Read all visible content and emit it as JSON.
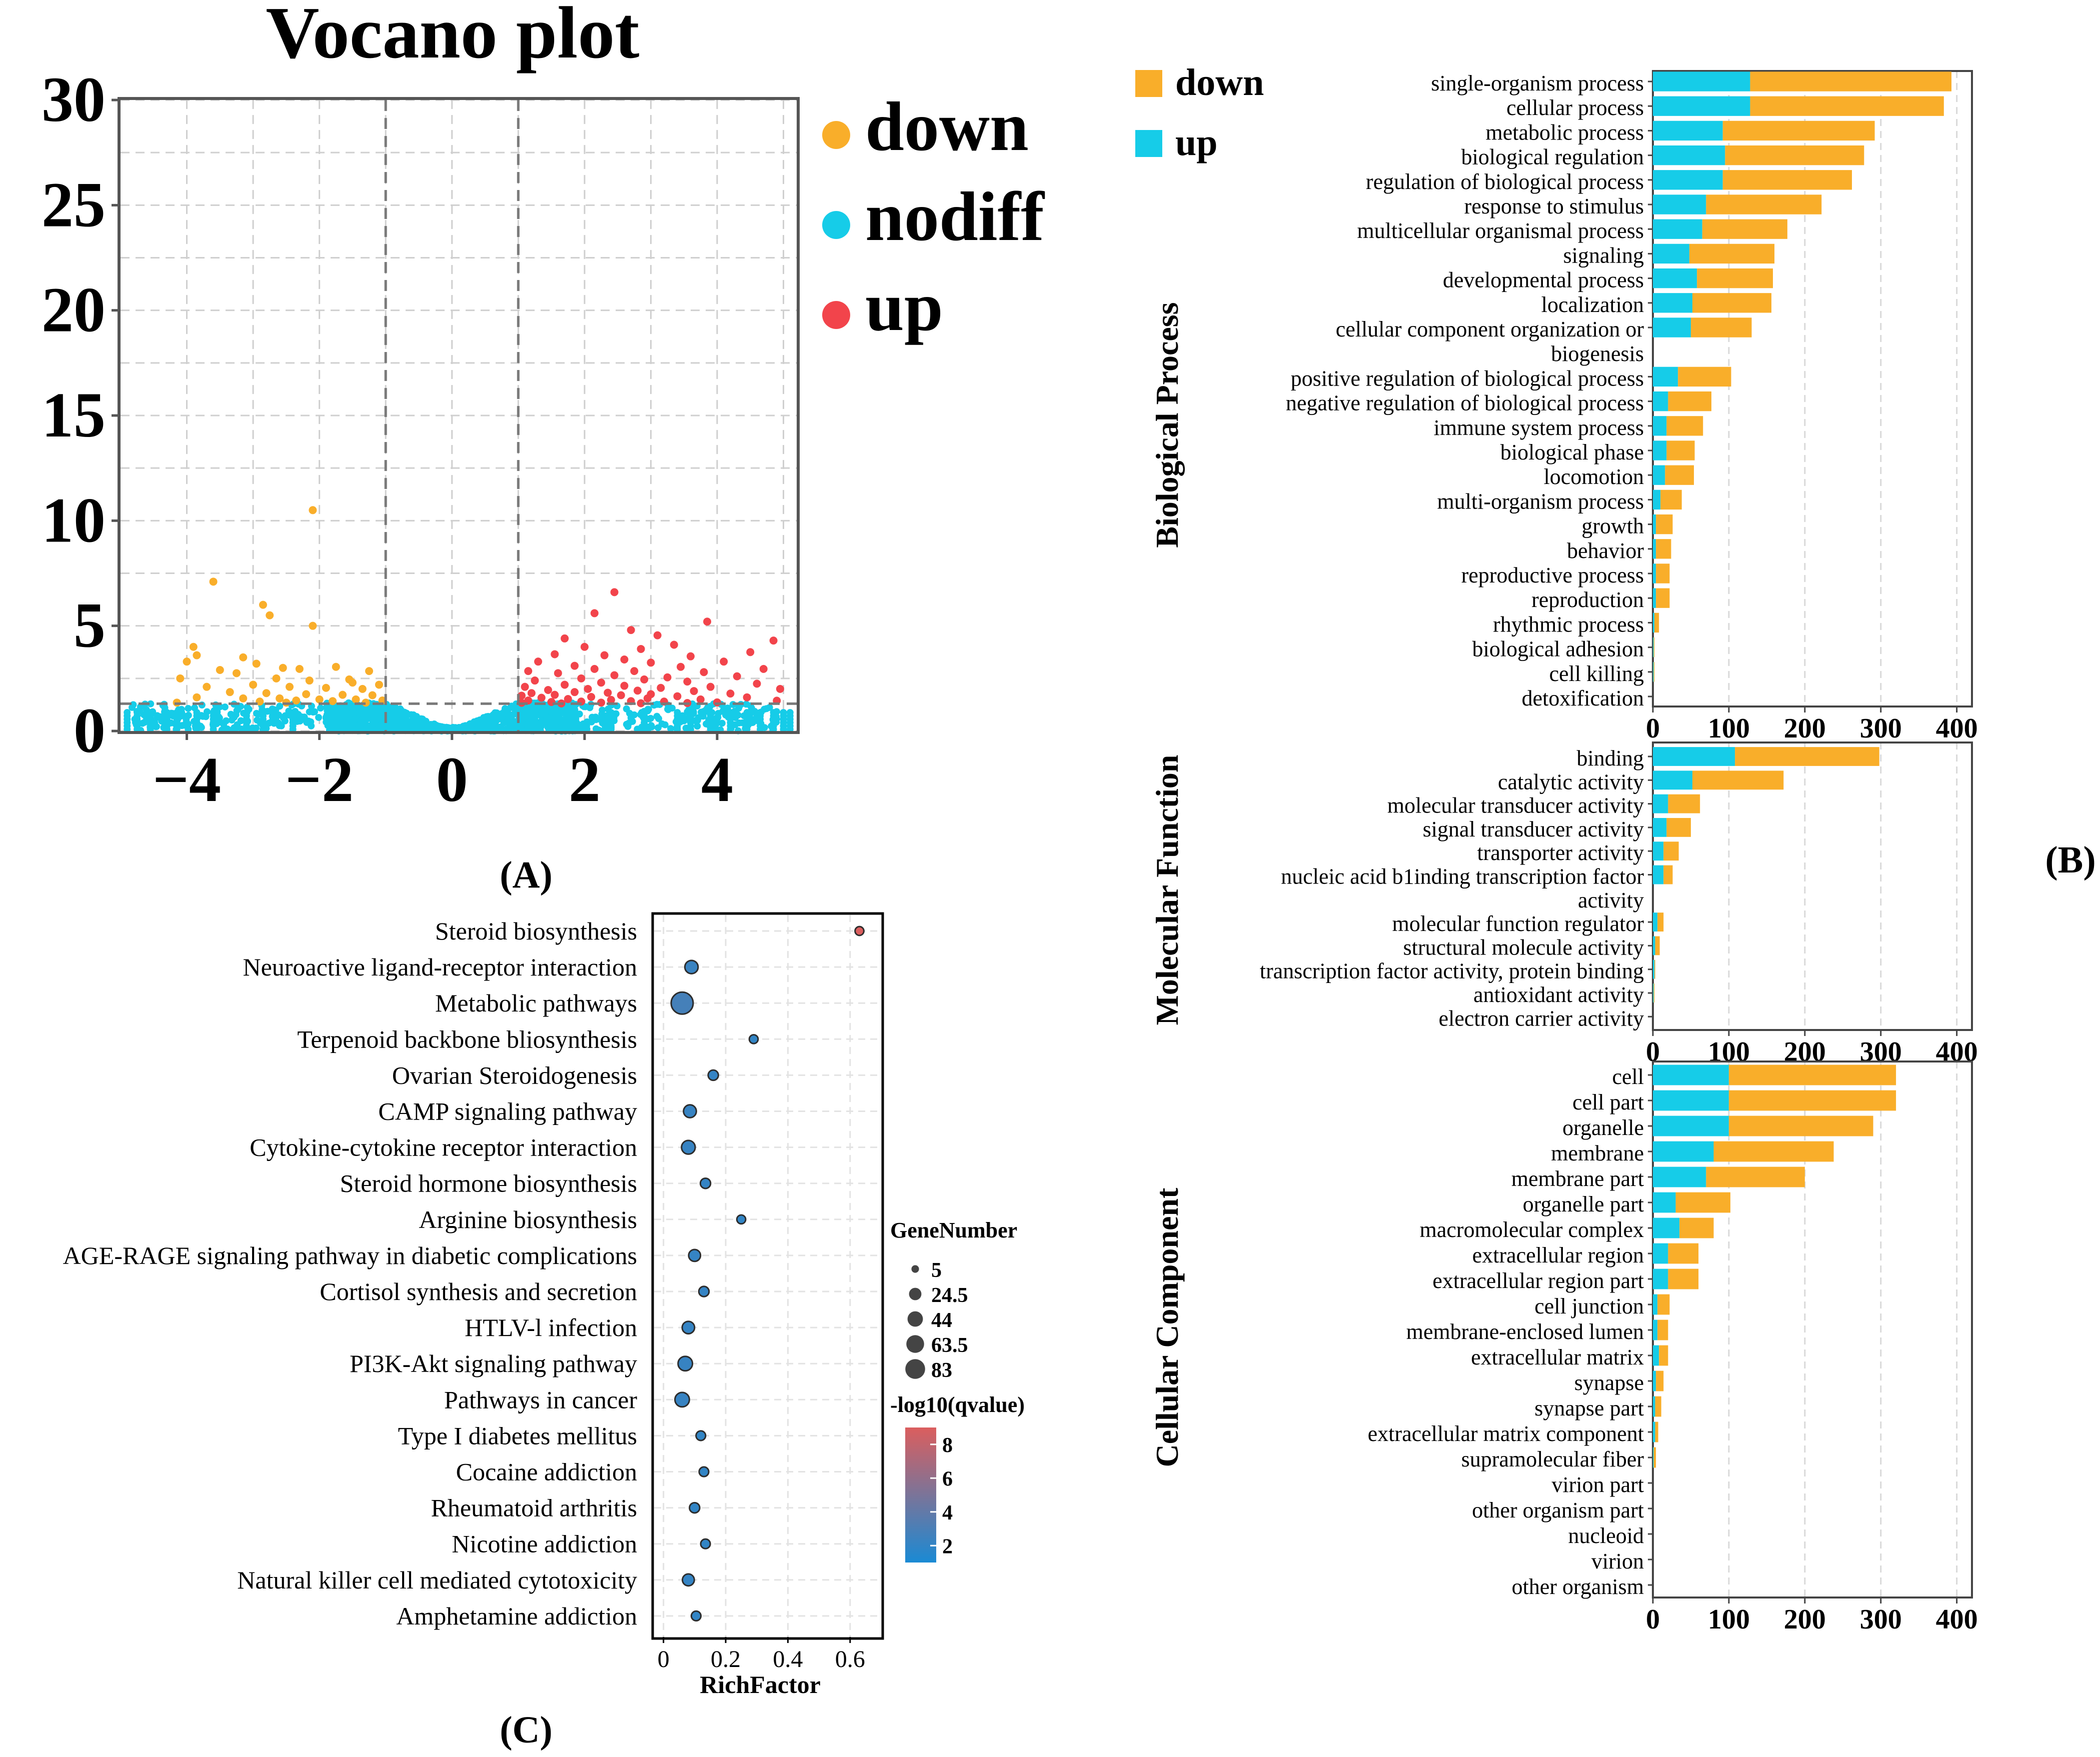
{
  "colors": {
    "down": "#F9AE2A",
    "nodiff": "#16CCE8",
    "up": "#F2444B",
    "bar_up": "#16CCE8",
    "bar_down": "#F9AE2A",
    "q_high": "#DB5E5E",
    "q_low": "#1A8AD4",
    "bubble_stroke": "#2C2C2C",
    "grid": "#CFCFCF"
  },
  "panel_labels": {
    "a": "(A)",
    "b": "(B)",
    "c": "(C)"
  },
  "chart_data": [
    {
      "panel": "A",
      "type": "scatter",
      "title": "Vocano plot",
      "xlabel": "",
      "ylabel": "",
      "xlim": [
        -5,
        5.2
      ],
      "ylim": [
        0,
        30
      ],
      "xticks": [
        -4,
        -2,
        0,
        2,
        4
      ],
      "xtick_labels": [
        "−4",
        "−2",
        "0",
        "2",
        "4"
      ],
      "yticks": [
        0,
        5,
        10,
        15,
        20,
        25,
        30
      ],
      "ytick_labels": [
        "0",
        "5",
        "10",
        "15",
        "20",
        "25",
        "30"
      ],
      "thresholds": {
        "log2fc": [
          -1,
          1
        ],
        "neg_log10_p": 1.3
      },
      "grid": true,
      "legend": {
        "position": "right",
        "entries": [
          "down",
          "nodiff",
          "up"
        ]
      },
      "series": [
        {
          "name": "down",
          "points": [
            [
              -2.1,
              10.5
            ],
            [
              -3.6,
              7.1
            ],
            [
              -2.85,
              6.0
            ],
            [
              -2.75,
              5.5
            ],
            [
              -2.1,
              5.0
            ],
            [
              -3.9,
              4.0
            ],
            [
              -3.85,
              3.6
            ],
            [
              -4.0,
              3.3
            ],
            [
              -3.15,
              3.5
            ],
            [
              -2.95,
              3.2
            ],
            [
              -3.5,
              2.9
            ],
            [
              -4.1,
              2.5
            ],
            [
              -2.55,
              3.0
            ],
            [
              -2.3,
              2.95
            ],
            [
              -1.75,
              3.05
            ],
            [
              -1.25,
              2.85
            ],
            [
              -3.25,
              2.75
            ],
            [
              -2.65,
              2.5
            ],
            [
              -1.55,
              2.45
            ],
            [
              -2.15,
              2.4
            ],
            [
              -1.5,
              2.3
            ],
            [
              -1.1,
              2.2
            ],
            [
              -3.7,
              2.1
            ],
            [
              -3.0,
              2.2
            ],
            [
              -2.45,
              2.1
            ],
            [
              -1.9,
              2.05
            ],
            [
              -1.35,
              2.0
            ],
            [
              -3.35,
              1.85
            ],
            [
              -2.8,
              1.8
            ],
            [
              -2.2,
              1.75
            ],
            [
              -1.65,
              1.72
            ],
            [
              -1.2,
              1.7
            ],
            [
              -3.85,
              1.6
            ],
            [
              -3.15,
              1.55
            ],
            [
              -2.6,
              1.55
            ],
            [
              -2.0,
              1.5
            ],
            [
              -1.45,
              1.5
            ],
            [
              -1.05,
              1.45
            ],
            [
              -2.35,
              1.45
            ],
            [
              -1.8,
              1.42
            ],
            [
              -2.9,
              1.4
            ],
            [
              -4.15,
              1.35
            ],
            [
              -1.3,
              1.35
            ],
            [
              -2.5,
              1.35
            ]
          ]
        },
        {
          "name": "up",
          "points": [
            [
              2.45,
              6.6
            ],
            [
              2.15,
              5.6
            ],
            [
              3.85,
              5.2
            ],
            [
              2.7,
              4.8
            ],
            [
              4.85,
              4.3
            ],
            [
              1.7,
              4.4
            ],
            [
              3.1,
              4.55
            ],
            [
              3.35,
              4.1
            ],
            [
              2.0,
              4.0
            ],
            [
              2.85,
              3.9
            ],
            [
              4.5,
              3.75
            ],
            [
              1.55,
              3.65
            ],
            [
              2.3,
              3.6
            ],
            [
              3.6,
              3.55
            ],
            [
              2.6,
              3.4
            ],
            [
              4.1,
              3.3
            ],
            [
              1.3,
              3.3
            ],
            [
              3.0,
              3.25
            ],
            [
              1.85,
              3.1
            ],
            [
              3.45,
              3.05
            ],
            [
              4.7,
              2.95
            ],
            [
              2.15,
              2.95
            ],
            [
              2.75,
              2.85
            ],
            [
              1.15,
              2.85
            ],
            [
              3.8,
              2.8
            ],
            [
              1.6,
              2.75
            ],
            [
              2.45,
              2.65
            ],
            [
              4.3,
              2.6
            ],
            [
              3.25,
              2.55
            ],
            [
              1.95,
              2.5
            ],
            [
              2.9,
              2.45
            ],
            [
              1.25,
              2.4
            ],
            [
              3.55,
              2.35
            ],
            [
              2.25,
              2.3
            ],
            [
              4.6,
              2.25
            ],
            [
              1.7,
              2.2
            ],
            [
              2.6,
              2.15
            ],
            [
              3.9,
              2.1
            ],
            [
              1.1,
              2.1
            ],
            [
              3.15,
              2.05
            ],
            [
              2.05,
              2.0
            ],
            [
              4.95,
              2.0
            ],
            [
              1.45,
              1.95
            ],
            [
              2.8,
              1.92
            ],
            [
              3.65,
              1.9
            ],
            [
              1.85,
              1.85
            ],
            [
              2.35,
              1.82
            ],
            [
              1.2,
              1.8
            ],
            [
              4.2,
              1.78
            ],
            [
              3.0,
              1.75
            ],
            [
              1.55,
              1.72
            ],
            [
              2.55,
              1.7
            ],
            [
              1.05,
              1.68
            ],
            [
              3.4,
              1.65
            ],
            [
              2.1,
              1.62
            ],
            [
              4.45,
              1.6
            ],
            [
              1.35,
              1.58
            ],
            [
              2.95,
              1.55
            ],
            [
              1.75,
              1.52
            ],
            [
              3.75,
              1.5
            ],
            [
              2.4,
              1.48
            ],
            [
              1.15,
              1.45
            ],
            [
              4.9,
              1.44
            ],
            [
              2.7,
              1.42
            ],
            [
              1.95,
              1.4
            ],
            [
              3.2,
              1.4
            ],
            [
              1.5,
              1.38
            ],
            [
              4.0,
              1.36
            ],
            [
              2.25,
              1.35
            ],
            [
              1.05,
              1.34
            ],
            [
              3.55,
              1.33
            ],
            [
              2.85,
              1.32
            ],
            [
              1.65,
              1.31
            ]
          ]
        }
      ]
    },
    {
      "panel": "B",
      "type": "bar",
      "orientation": "horizontal",
      "stacked": true,
      "xlim": [
        0,
        420
      ],
      "xticks": [
        0,
        100,
        200,
        300,
        400
      ],
      "legend": {
        "position": "top-left",
        "entries": [
          "down",
          "up"
        ]
      },
      "groups": [
        {
          "name": "Biological Process",
          "categories": [
            [
              "single-organism process"
            ],
            [
              "cellular process"
            ],
            [
              "metabolic process"
            ],
            [
              "biological regulation"
            ],
            [
              "regulation of biological process"
            ],
            [
              "response to stimulus"
            ],
            [
              "multicellular organismal process"
            ],
            [
              "signaling"
            ],
            [
              "developmental process"
            ],
            [
              "localization"
            ],
            [
              "cellular component organization or",
              "biogenesis"
            ],
            [
              "positive regulation of biological process"
            ],
            [
              "negative regulation of biological process"
            ],
            [
              "immune system process"
            ],
            [
              "biological phase"
            ],
            [
              "locomotion"
            ],
            [
              "multi-organism process"
            ],
            [
              "growth"
            ],
            [
              "behavior"
            ],
            [
              "reproductive process"
            ],
            [
              "reproduction"
            ],
            [
              "rhythmic process"
            ],
            [
              "biological adhesion"
            ],
            [
              "cell killing"
            ],
            [
              "detoxification"
            ]
          ],
          "series": [
            {
              "name": "up",
              "values": [
                128,
                128,
                92,
                95,
                92,
                70,
                65,
                48,
                58,
                52,
                50,
                33,
                20,
                18,
                18,
                16,
                10,
                4,
                4,
                4,
                4,
                2,
                1,
                1,
                0
              ]
            },
            {
              "name": "down",
              "values": [
                265,
                255,
                200,
                183,
                170,
                152,
                112,
                112,
                100,
                104,
                80,
                70,
                57,
                48,
                37,
                38,
                28,
                22,
                20,
                18,
                18,
                6,
                1,
                1,
                0
              ]
            }
          ]
        },
        {
          "name": "Molecular Function",
          "categories": [
            [
              "binding"
            ],
            [
              "catalytic activity"
            ],
            [
              "molecular transducer activity"
            ],
            [
              "signal transducer activity"
            ],
            [
              "transporter activity"
            ],
            [
              "nucleic acid b1inding transcription factor",
              "activity"
            ],
            [
              "molecular function regulator"
            ],
            [
              "structural molecule activity"
            ],
            [
              "transcription factor activity, protein binding"
            ],
            [
              "antioxidant activity"
            ],
            [
              "electron carrier activity"
            ]
          ],
          "series": [
            {
              "name": "up",
              "values": [
                108,
                52,
                20,
                18,
                14,
                14,
                6,
                3,
                2,
                1,
                0
              ]
            },
            {
              "name": "down",
              "values": [
                190,
                120,
                42,
                32,
                20,
                12,
                8,
                6,
                1,
                1,
                0
              ]
            }
          ]
        },
        {
          "name": "Cellular Component",
          "categories": [
            [
              "cell"
            ],
            [
              "cell part"
            ],
            [
              "organelle"
            ],
            [
              "membrane"
            ],
            [
              "membrane part"
            ],
            [
              "organelle part"
            ],
            [
              "macromolecular complex"
            ],
            [
              "extracellular region"
            ],
            [
              "extracellular region part"
            ],
            [
              "cell junction"
            ],
            [
              "membrane-enclosed lumen"
            ],
            [
              "extracellular matrix"
            ],
            [
              "synapse"
            ],
            [
              "synapse part"
            ],
            [
              "extracellular matrix component"
            ],
            [
              "supramolecular fiber"
            ],
            [
              "virion part"
            ],
            [
              "other organism part"
            ],
            [
              "nucleoid"
            ],
            [
              "virion"
            ],
            [
              "other organism"
            ]
          ],
          "series": [
            {
              "name": "up",
              "values": [
                100,
                100,
                100,
                80,
                70,
                30,
                35,
                20,
                20,
                6,
                6,
                8,
                4,
                3,
                3,
                1,
                0,
                0,
                0,
                0,
                0
              ]
            },
            {
              "name": "down",
              "values": [
                220,
                220,
                190,
                158,
                130,
                72,
                45,
                40,
                40,
                16,
                14,
                12,
                10,
                8,
                4,
                3,
                0,
                0,
                0,
                0,
                0
              ]
            }
          ]
        }
      ]
    },
    {
      "panel": "C",
      "type": "scatter",
      "subtype": "bubble",
      "xlabel": "RichFactor",
      "xlim": [
        -0.03,
        0.7
      ],
      "xticks": [
        0,
        0.2,
        0.4,
        0.6
      ],
      "xtick_labels": [
        "0",
        "0.2",
        "0.4",
        "0.6"
      ],
      "grid": true,
      "categories": [
        "Steroid biosynthesis",
        "Neuroactive ligand-receptor interaction",
        "Metabolic pathways",
        "Terpenoid backbone bliosynthesis",
        "Ovarian Steroidogenesis",
        "CAMP signaling pathway",
        "Cytokine-cytokine receptor interaction",
        "Steroid hormone biosynthesis",
        "Arginine biosynthesis",
        "AGE-RAGE signaling pathway in diabetic complications",
        "Cortisol synthesis and secretion",
        "HTLV-l infection",
        "PI3K-Akt signaling pathway",
        "Pathways in cancer",
        "Type I diabetes mellitus",
        "Cocaine addiction",
        "Rheumatoid arthritis",
        "Nicotine addiction",
        "Natural killer cell mediated cytotoxicity",
        "Amphetamine addiction"
      ],
      "x": [
        0.63,
        0.09,
        0.06,
        0.29,
        0.16,
        0.085,
        0.08,
        0.135,
        0.25,
        0.1,
        0.13,
        0.08,
        0.07,
        0.06,
        0.12,
        0.13,
        0.1,
        0.135,
        0.08,
        0.105
      ],
      "gene_number": [
        6,
        22,
        83,
        6,
        10,
        20,
        24,
        10,
        6,
        16,
        10,
        18,
        28,
        28,
        8,
        8,
        10,
        8,
        16,
        8
      ],
      "neg_log10_qvalue": [
        9.0,
        2.3,
        2.8,
        2.0,
        2.1,
        2.2,
        2.2,
        2.1,
        2.0,
        2.1,
        2.1,
        2.1,
        2.2,
        2.2,
        2.0,
        2.0,
        2.0,
        2.0,
        2.1,
        2.0
      ],
      "legend": {
        "size_title": "GeneNumber",
        "size_entries": [
          5,
          24.5,
          44,
          63.5,
          83
        ],
        "size_labels": [
          "5",
          "24.5",
          "44",
          "63.5",
          "83"
        ],
        "color_title": "-log10(qvalue)",
        "color_range": [
          1,
          9
        ],
        "color_ticks": [
          8,
          6,
          4,
          2
        ],
        "color_tick_labels": [
          "8",
          "6",
          "4",
          "2"
        ]
      }
    }
  ]
}
